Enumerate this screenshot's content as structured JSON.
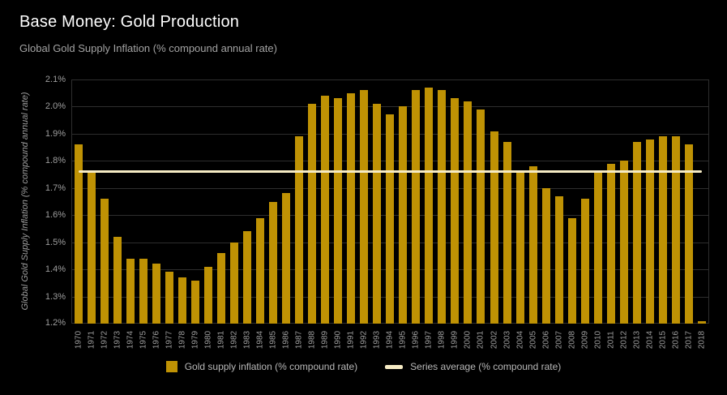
{
  "chart_data": {
    "type": "bar",
    "title": "Base Money: Gold Production",
    "subtitle": "Global Gold Supply Inflation (% compound annual rate)",
    "xlabel": "",
    "ylabel": "Global Gold Supply Inflation (% compound annual rate)",
    "ylim": [
      1.2,
      2.1
    ],
    "y_ticks": [
      "2.1%",
      "2.0%",
      "1.9%",
      "1.8%",
      "1.7%",
      "1.6%",
      "1.5%",
      "1.4%",
      "1.3%",
      "1.2%"
    ],
    "grid": true,
    "legend_position": "bottom",
    "categories": [
      1970,
      1971,
      1972,
      1973,
      1974,
      1975,
      1976,
      1977,
      1978,
      1979,
      1980,
      1981,
      1982,
      1983,
      1984,
      1985,
      1986,
      1987,
      1988,
      1989,
      1990,
      1991,
      1992,
      1993,
      1994,
      1995,
      1996,
      1997,
      1998,
      1999,
      2000,
      2001,
      2002,
      2003,
      2004,
      2005,
      2006,
      2007,
      2008,
      2009,
      2010,
      2011,
      2012,
      2013,
      2014,
      2015,
      2016,
      2017,
      2018
    ],
    "values": [
      1.86,
      1.76,
      1.66,
      1.52,
      1.44,
      1.44,
      1.42,
      1.39,
      1.37,
      1.36,
      1.41,
      1.46,
      1.5,
      1.54,
      1.59,
      1.65,
      1.68,
      1.89,
      2.01,
      2.04,
      2.03,
      2.05,
      2.06,
      2.01,
      1.97,
      2.0,
      2.06,
      2.07,
      2.06,
      2.03,
      2.02,
      1.99,
      1.91,
      1.87,
      1.76,
      1.78,
      1.7,
      1.67,
      1.59,
      1.66,
      1.76,
      1.79,
      1.8,
      1.87,
      1.88,
      1.89,
      1.89,
      1.86,
      1.21
    ],
    "series_average": 1.76,
    "legend": [
      {
        "label": "Gold supply inflation (% compound rate)",
        "swatch": "square"
      },
      {
        "label": "Series average (% compound rate)",
        "swatch": "dash"
      }
    ],
    "colors": {
      "background": "#000000",
      "bar": "#bf9204",
      "average_line": "#f6ebc4",
      "title_text": "#ffffff",
      "subtitle_text": "#a3a3a3",
      "axis_text": "#9e9e9e",
      "gridline": "#2e2e2e",
      "legend_text": "#b8b8b8"
    }
  }
}
